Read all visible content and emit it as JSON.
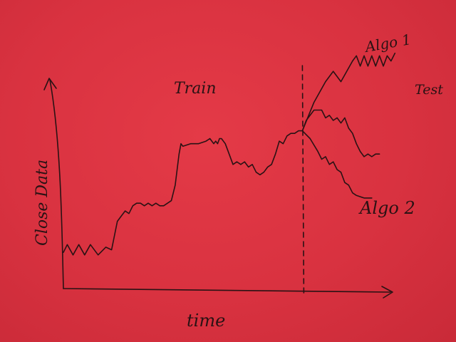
{
  "chart_data": {
    "type": "line",
    "xlabel": "time",
    "ylabel": "Close Data",
    "annotations": [
      {
        "text": "Train",
        "region": "train"
      },
      {
        "text": "Test",
        "region": "test"
      }
    ],
    "grid": false,
    "divider": {
      "style": "dashed",
      "x": 62
    },
    "xlim": [
      0,
      100
    ],
    "ylim": [
      0,
      100
    ],
    "series": [
      {
        "role": "train",
        "x": [
          0,
          1,
          2.5,
          4,
          5.5,
          7,
          9,
          11,
          12.5,
          14,
          15,
          16,
          17,
          18,
          19,
          20,
          21,
          22,
          23,
          24,
          25,
          26,
          27,
          28,
          29,
          30,
          30.5,
          31,
          33,
          35,
          37,
          38,
          38.5,
          39,
          39.5,
          40,
          40.5,
          41,
          42,
          43,
          44,
          45,
          46,
          47,
          48,
          49,
          50,
          51,
          52,
          53,
          54,
          55,
          56,
          57,
          58,
          59,
          60,
          61,
          62
        ],
        "y": [
          14,
          17,
          13,
          17,
          13,
          17,
          13,
          16,
          15,
          26,
          28,
          30,
          29,
          32,
          33,
          33,
          32,
          33,
          32,
          33,
          32,
          32,
          33,
          34,
          40,
          52,
          56,
          55,
          56,
          56,
          57,
          58,
          57,
          56,
          57,
          56,
          58,
          58,
          56,
          52,
          48,
          49,
          48,
          49,
          47,
          48,
          45,
          44,
          45,
          47,
          48,
          52,
          57,
          56,
          59,
          60,
          60,
          61,
          61
        ]
      },
      {
        "name": "Algo 1",
        "x": [
          62,
          65,
          68,
          70,
          72,
          75,
          76,
          77,
          78,
          79,
          80,
          81,
          82,
          83,
          84,
          85,
          86
        ],
        "y": [
          61,
          72,
          80,
          84,
          80,
          88,
          90,
          86,
          90,
          86,
          90,
          86,
          90,
          86,
          90,
          88,
          91
        ]
      },
      {
        "name": "Algo 2",
        "x": [
          62,
          64,
          66,
          67,
          68,
          69,
          70,
          71,
          72,
          73,
          74,
          75,
          76,
          78,
          80
        ],
        "y": [
          61,
          58,
          53,
          50,
          51,
          48,
          49,
          46,
          45,
          41,
          40,
          37,
          36,
          35,
          35
        ]
      },
      {
        "role": "test",
        "x": [
          62,
          63,
          65,
          67,
          68,
          69,
          70,
          71,
          72,
          73,
          74,
          75,
          76,
          77,
          78,
          79,
          80,
          81,
          82
        ],
        "y": [
          61,
          65,
          69,
          69,
          66,
          67,
          65,
          66,
          64,
          66,
          62,
          60,
          56,
          53,
          51,
          52,
          51,
          52,
          52
        ]
      }
    ]
  }
}
